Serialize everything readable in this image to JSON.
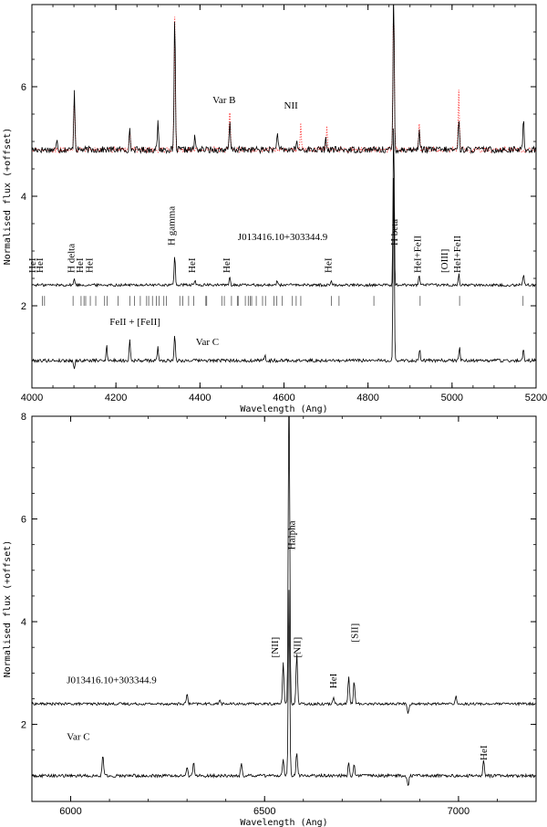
{
  "chart_data": [
    {
      "type": "line",
      "xlabel": "Wavelength (Ang)",
      "ylabel": "Normalised flux (+offset)",
      "xlim": [
        4000,
        5200
      ],
      "ylim": [
        0.5,
        7.5
      ],
      "x_ticks": [
        4000,
        4200,
        4400,
        4600,
        4800,
        5000,
        5200
      ],
      "y_ticks": [
        2,
        4,
        6
      ],
      "grid": false,
      "series": [
        {
          "name": "Var B",
          "baseline": 4.85,
          "noise": 0.06,
          "lines": [
            [
              4101,
              1.1
            ],
            [
              4340,
              2.5
            ],
            [
              4861,
              3.0
            ],
            [
              4471,
              0.5
            ],
            [
              4922,
              0.4
            ],
            [
              5016,
              0.6
            ],
            [
              4233,
              0.35
            ],
            [
              4300,
              0.5
            ],
            [
              5170,
              0.6
            ],
            [
              4584,
              0.35
            ],
            [
              4060,
              0.2
            ],
            [
              4388,
              0.25
            ],
            [
              4700,
              0.2
            ],
            [
              4630,
              0.15
            ]
          ]
        },
        {
          "name": "J013416.10+303344.9",
          "baseline": 2.38,
          "noise": 0.025,
          "lines": [
            [
              4101,
              0.12
            ],
            [
              4340,
              0.55
            ],
            [
              4861,
              3.0
            ],
            [
              4471,
              0.15
            ],
            [
              4922,
              0.18
            ],
            [
              5016,
              0.2
            ],
            [
              4388,
              0.08
            ],
            [
              5170,
              0.2
            ],
            [
              4584,
              0.08
            ],
            [
              4713,
              0.08
            ]
          ]
        },
        {
          "name": "Var C",
          "baseline": 1.0,
          "noise": 0.03,
          "lines": [
            [
              4101,
              -0.15
            ],
            [
              4340,
              0.5
            ],
            [
              4861,
              3.5
            ],
            [
              4233,
              0.4
            ],
            [
              4178,
              0.3
            ],
            [
              4300,
              0.25
            ],
            [
              4923,
              0.2
            ],
            [
              5018,
              0.25
            ],
            [
              5170,
              0.2
            ],
            [
              4555,
              0.1
            ]
          ]
        }
      ],
      "comparison_series": {
        "color": "#ff3030",
        "style": "dotted",
        "follows": "Var B",
        "lines": [
          [
            4101,
            1.0
          ],
          [
            4340,
            2.4
          ],
          [
            4861,
            2.9
          ],
          [
            4471,
            0.9
          ],
          [
            5016,
            1.1
          ],
          [
            4922,
            0.5
          ],
          [
            4233,
            0.4
          ],
          [
            4640,
            0.5
          ],
          [
            4702,
            0.4
          ]
        ]
      },
      "tick_marks": {
        "label": "FeII + [FeII]",
        "y_range": [
          2.0,
          2.18
        ],
        "x": [
          4025,
          4030,
          4098,
          4117,
          4124,
          4128,
          4139,
          4152,
          4173,
          4179,
          4205,
          4233,
          4244,
          4258,
          4273,
          4278,
          4287,
          4296,
          4303,
          4314,
          4320,
          4352,
          4359,
          4373,
          4385,
          4414,
          4416,
          4452,
          4458,
          4475,
          4489,
          4491,
          4508,
          4515,
          4520,
          4523,
          4534,
          4549,
          4556,
          4576,
          4583,
          4596,
          4620,
          4629,
          4640,
          4713,
          4731,
          4814,
          4924,
          5018,
          5169
        ]
      },
      "annotations": [
        {
          "text": "HeI",
          "x": 4009,
          "y": 2.6,
          "rotate": true
        },
        {
          "text": "HeI",
          "x": 4026,
          "y": 2.6,
          "rotate": true
        },
        {
          "text": "H delta",
          "x": 4101,
          "y": 2.6,
          "rotate": true
        },
        {
          "text": "HeI",
          "x": 4121,
          "y": 2.6,
          "rotate": true
        },
        {
          "text": "HeI",
          "x": 4144,
          "y": 2.6,
          "rotate": true
        },
        {
          "text": "H gamma",
          "x": 4340,
          "y": 3.1,
          "rotate": true
        },
        {
          "text": "HeI",
          "x": 4388,
          "y": 2.6,
          "rotate": true
        },
        {
          "text": "HeI",
          "x": 4471,
          "y": 2.6,
          "rotate": true
        },
        {
          "text": "HeI",
          "x": 4713,
          "y": 2.6,
          "rotate": true
        },
        {
          "text": "H beta",
          "x": 4870,
          "y": 3.1,
          "rotate": true
        },
        {
          "text": "HeI+FeII",
          "x": 4926,
          "y": 2.6,
          "rotate": true
        },
        {
          "text": "[OIII]",
          "x": 4990,
          "y": 2.6,
          "rotate": true
        },
        {
          "text": "HeI+FeII",
          "x": 5020,
          "y": 2.6,
          "rotate": true
        },
        {
          "text": "Var B",
          "x": 4430,
          "y": 5.7,
          "rotate": false
        },
        {
          "text": "NII",
          "x": 4600,
          "y": 5.6,
          "rotate": false
        },
        {
          "text": "J013416.10+303344.9",
          "x": 4490,
          "y": 3.2,
          "rotate": false
        },
        {
          "text": "FeII + [FeII]",
          "x": 4185,
          "y": 1.65,
          "rotate": false
        },
        {
          "text": "Var C",
          "x": 4390,
          "y": 1.28,
          "rotate": false
        }
      ]
    },
    {
      "type": "line",
      "xlabel": "Wavelength (Ang)",
      "ylabel": "Normalised flux (+offset)",
      "xlim": [
        5900,
        7200
      ],
      "ylim": [
        0.5,
        8.0
      ],
      "x_ticks": [
        6000,
        6500,
        7000
      ],
      "y_ticks": [
        2,
        4,
        6,
        8
      ],
      "grid": false,
      "series": [
        {
          "name": "J013416.10+303344.9",
          "baseline": 2.4,
          "noise": 0.025,
          "lines": [
            [
              6563,
              6.5
            ],
            [
              6548,
              0.8
            ],
            [
              6583,
              1.0
            ],
            [
              6678,
              0.15
            ],
            [
              6717,
              0.55
            ],
            [
              6731,
              0.45
            ],
            [
              6300,
              0.2
            ],
            [
              6993,
              0.15
            ],
            [
              6384,
              0.08
            ],
            [
              6870,
              -0.2
            ]
          ]
        },
        {
          "name": "Var C",
          "baseline": 1.0,
          "noise": 0.03,
          "lines": [
            [
              6563,
              3.6
            ],
            [
              6548,
              0.35
            ],
            [
              6583,
              0.45
            ],
            [
              6083,
              0.4
            ],
            [
              6317,
              0.3
            ],
            [
              6300,
              0.15
            ],
            [
              6717,
              0.25
            ],
            [
              6731,
              0.2
            ],
            [
              7065,
              0.3
            ],
            [
              6870,
              -0.2
            ],
            [
              6440,
              0.25
            ]
          ]
        }
      ],
      "annotations": [
        {
          "text": "Halpha",
          "x": 6578,
          "y": 5.4,
          "rotate": true
        },
        {
          "text": "[NII]",
          "x": 6535,
          "y": 3.3,
          "rotate": true
        },
        {
          "text": "[NII]",
          "x": 6592,
          "y": 3.3,
          "rotate": true
        },
        {
          "text": "[SII]",
          "x": 6740,
          "y": 3.6,
          "rotate": true
        },
        {
          "text": "HeI",
          "x": 6685,
          "y": 2.7,
          "rotate": true
        },
        {
          "text": "HeI",
          "x": 7073,
          "y": 1.3,
          "rotate": true
        },
        {
          "text": "J013416.10+303344.9",
          "x": 5990,
          "y": 2.8,
          "rotate": false
        },
        {
          "text": "Var C",
          "x": 5990,
          "y": 1.7,
          "rotate": false
        }
      ]
    }
  ]
}
